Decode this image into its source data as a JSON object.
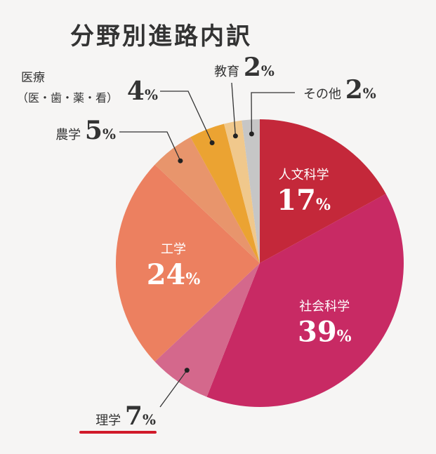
{
  "chart_data": {
    "type": "pie",
    "title": "分野別進路内訳",
    "start_angle_deg": 0,
    "direction": "clockwise",
    "slices": [
      {
        "name": "人文科学",
        "value": 17,
        "color": "#c4283a"
      },
      {
        "name": "社会科学",
        "value": 39,
        "color": "#c82a64"
      },
      {
        "name": "理学",
        "value": 7,
        "color": "#d4688c"
      },
      {
        "name": "工学",
        "value": 24,
        "color": "#ec8060"
      },
      {
        "name": "農学",
        "value": 5,
        "color": "#e8956c"
      },
      {
        "name": "医療",
        "subname": "（医・歯・薬・看）",
        "value": 4,
        "color": "#eba332"
      },
      {
        "name": "教育",
        "value": 2,
        "color": "#f0c88c"
      },
      {
        "name": "その他",
        "value": 2,
        "color": "#c6c6c6"
      }
    ],
    "percent_symbol": "%",
    "highlight": {
      "label": "理学",
      "color": "#d11a2a"
    }
  }
}
